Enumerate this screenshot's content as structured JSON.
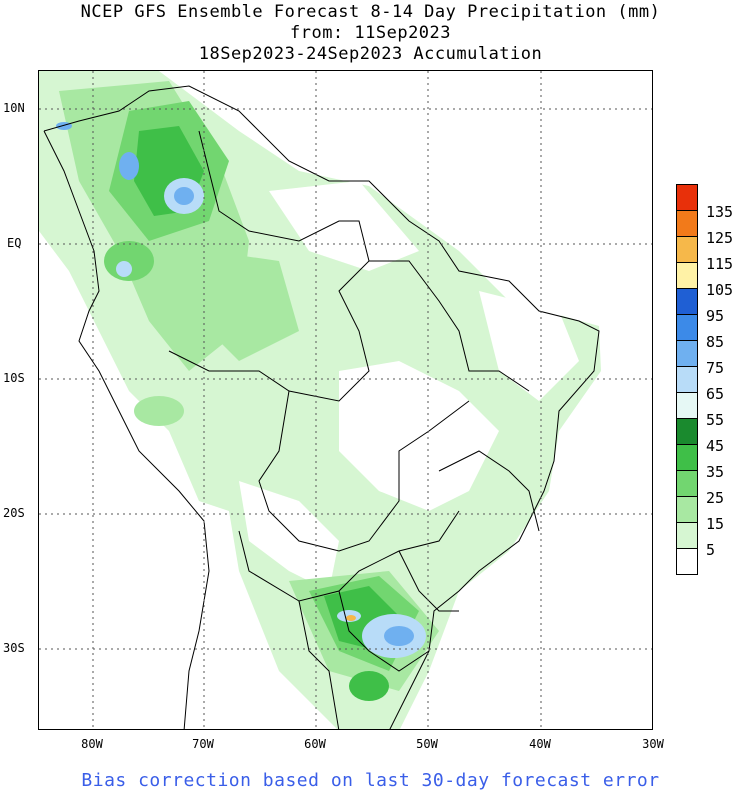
{
  "title": {
    "line1": "NCEP GFS Ensemble Forecast 8-14 Day Precipitation (mm)",
    "line2": "from: 11Sep2023",
    "line3": "18Sep2023-24Sep2023 Accumulation"
  },
  "map": {
    "lat_labels": [
      "10N",
      "EQ",
      "10S",
      "20S",
      "30S"
    ],
    "lon_labels": [
      "80W",
      "70W",
      "60W",
      "50W",
      "40W",
      "30W"
    ]
  },
  "legend": {
    "levels": [
      {
        "label": "135",
        "color": "#e8300a"
      },
      {
        "label": "125",
        "color": "#f27a1a"
      },
      {
        "label": "115",
        "color": "#f6b84a"
      },
      {
        "label": "105",
        "color": "#fff2a6"
      },
      {
        "label": "95",
        "color": "#1f5fd4"
      },
      {
        "label": "85",
        "color": "#3c8ae8"
      },
      {
        "label": "75",
        "color": "#6fb0f0"
      },
      {
        "label": "65",
        "color": "#b8dcf8"
      },
      {
        "label": "55",
        "color": "#e6f8f5"
      },
      {
        "label": "45",
        "color": "#1a8a2e"
      },
      {
        "label": "35",
        "color": "#3fbf48"
      },
      {
        "label": "25",
        "color": "#72d670"
      },
      {
        "label": "15",
        "color": "#a8e8a2"
      },
      {
        "label": "5",
        "color": "#d6f6d2"
      },
      {
        "label": "",
        "color": "#ffffff"
      }
    ]
  },
  "footer": "Bias correction based on last 30-day forecast error"
}
